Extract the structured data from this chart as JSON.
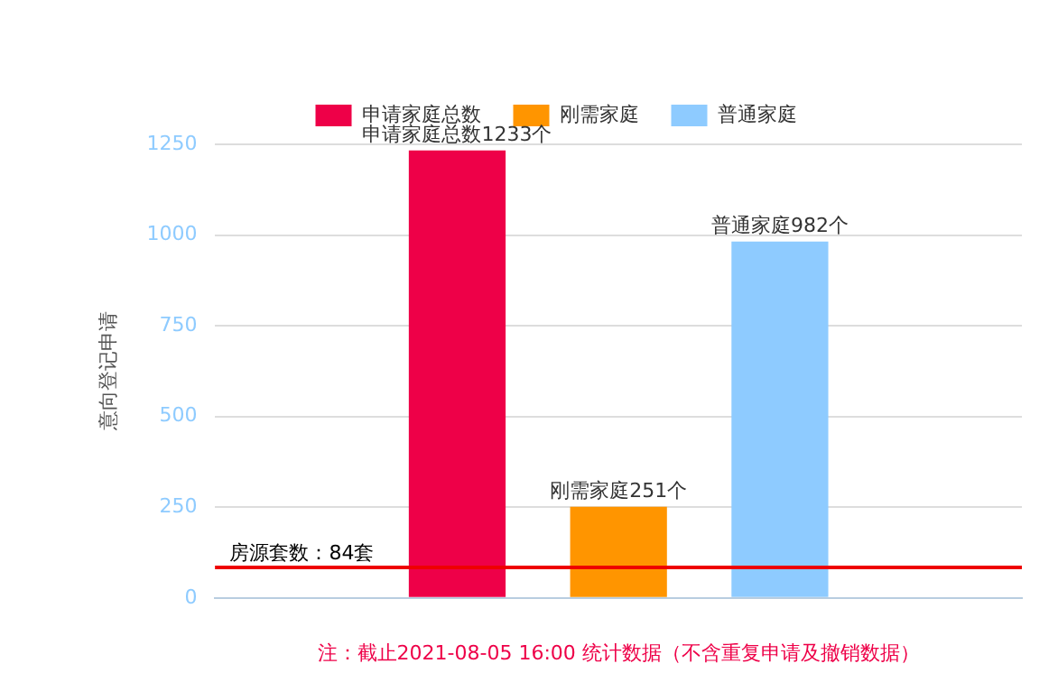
{
  "chart_data": {
    "type": "bar",
    "categories": [
      null
    ],
    "series": [
      {
        "name": "申请家庭总数",
        "color": "#ee0048",
        "values": [
          1233
        ],
        "value_labels": [
          "申请家庭总数1233个"
        ]
      },
      {
        "name": "刚需家庭",
        "color": "#ff9500",
        "values": [
          251
        ],
        "value_labels": [
          "刚需家庭251个"
        ]
      },
      {
        "name": "普通家庭",
        "color": "#8ecbff",
        "values": [
          982
        ],
        "value_labels": [
          "普通家庭982个"
        ]
      }
    ],
    "ylabel": "意向登记申请",
    "xlabel": "注：截止2021-08-05 16:00 统计数据（不含重复申请及撤销数据）",
    "ylim": [
      0,
      1250
    ],
    "yticks": [
      0,
      250,
      500,
      750,
      1000,
      1250
    ],
    "grid": "y",
    "legend": "top",
    "ref_lines": [
      {
        "axis": "y",
        "value": 84,
        "label": "房源套数：84套",
        "color": "#ee0000"
      }
    ]
  }
}
